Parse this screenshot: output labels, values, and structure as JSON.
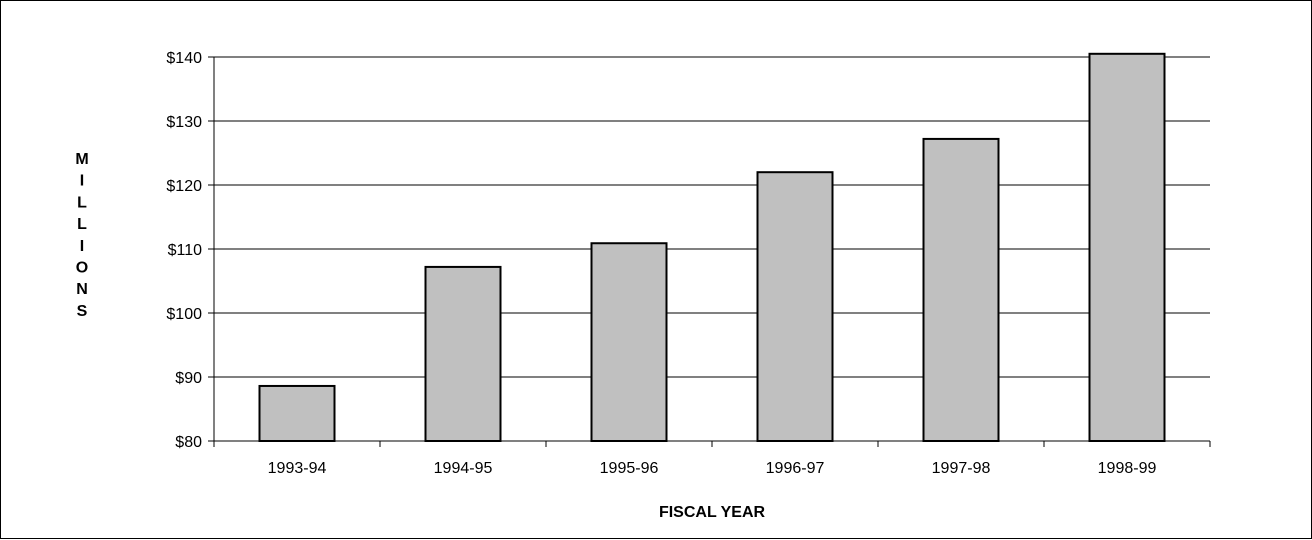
{
  "chart_data": {
    "type": "bar",
    "title": "",
    "xlabel": "FISCAL YEAR",
    "ylabel": "MILLIONS",
    "categories": [
      "1993-94",
      "1994-95",
      "1995-96",
      "1996-97",
      "1997-98",
      "1998-99"
    ],
    "values": [
      88.6,
      107.2,
      110.9,
      122.0,
      127.2,
      140.5
    ],
    "yticks": [
      80,
      90,
      100,
      110,
      120,
      130,
      140
    ],
    "ytick_labels": [
      "$80",
      "$90",
      "$100",
      "$110",
      "$120",
      "$130",
      "$140"
    ],
    "ylim": [
      80,
      140
    ],
    "grid": true,
    "legend": false,
    "bar_color": "#c0c0c0",
    "bar_edge_color": "#000000"
  }
}
